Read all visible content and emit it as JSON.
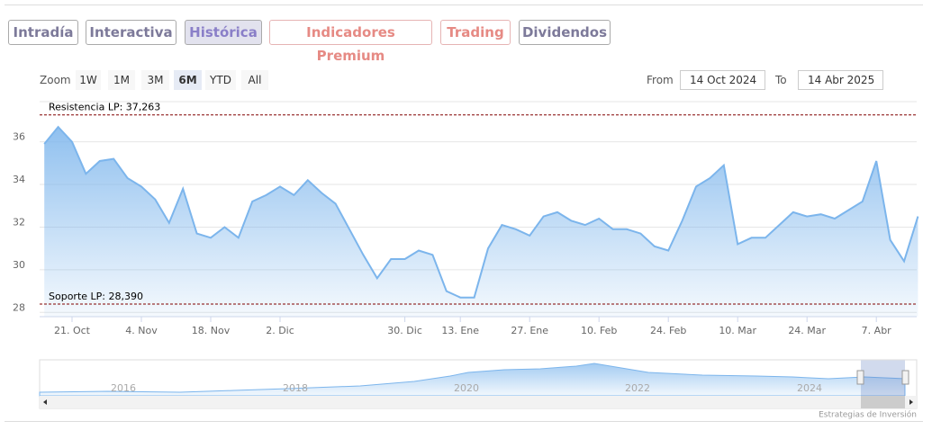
{
  "tabs": [
    "Intradía",
    "Interactiva",
    "Histórica",
    "Indicadores Premium",
    "Trading",
    "Dividendos"
  ],
  "zoom": {
    "label": "Zoom",
    "buttons": [
      "1W",
      "1M",
      "3M",
      "6M",
      "YTD",
      "All"
    ]
  },
  "range": {
    "from_label": "From",
    "from": "14 Oct 2024",
    "to_label": "To",
    "to": "14 Abr 2025"
  },
  "navigator": {
    "labels": [
      "2016",
      "2018",
      "2020",
      "2022",
      "2024"
    ]
  },
  "credit": "Estrategias de Inversión",
  "chart_data": {
    "type": "area",
    "color": "#7cb5ec",
    "categories": [
      null,
      null,
      "21. Oct",
      null,
      null,
      null,
      null,
      "4. Nov",
      null,
      null,
      null,
      null,
      "18. Nov",
      null,
      null,
      null,
      null,
      "2. Dic",
      null,
      null,
      null,
      null,
      null,
      null,
      null,
      null,
      "30. Dic",
      null,
      null,
      null,
      "13. Ene",
      null,
      null,
      null,
      null,
      "27. Ene",
      null,
      null,
      null,
      null,
      "10. Feb",
      null,
      null,
      null,
      null,
      "24. Feb",
      null,
      null,
      null,
      null,
      "10. Mar",
      null,
      null,
      null,
      null,
      "24. Mar",
      null,
      null,
      null,
      null,
      "7. Abr",
      null,
      null,
      null
    ],
    "values": [
      35.9,
      36.7,
      36.0,
      34.5,
      35.1,
      35.2,
      34.3,
      33.9,
      33.3,
      32.2,
      33.8,
      31.7,
      31.5,
      32.0,
      31.5,
      33.2,
      33.5,
      33.9,
      33.5,
      34.2,
      33.6,
      33.1,
      31.9,
      30.7,
      29.6,
      30.5,
      30.5,
      30.9,
      30.7,
      29.0,
      28.7,
      28.7,
      31.0,
      32.1,
      31.9,
      31.6,
      32.5,
      32.7,
      32.3,
      32.1,
      32.4,
      31.9,
      31.9,
      31.7,
      31.1,
      30.9,
      32.3,
      33.9,
      34.3,
      34.9,
      31.2,
      31.5,
      31.5,
      32.1,
      32.7,
      32.5,
      32.6,
      32.4,
      32.8,
      33.2,
      35.1,
      31.4,
      30.4,
      32.5
    ],
    "ylim": [
      27.8,
      37.8
    ],
    "yticks": [
      28,
      30,
      32,
      34,
      36
    ],
    "grid": true,
    "plot_lines": [
      {
        "value": 37.263,
        "label": "Resistencia LP: 37,263"
      },
      {
        "value": 28.39,
        "label": "Soporte LP: 28,390"
      }
    ]
  }
}
